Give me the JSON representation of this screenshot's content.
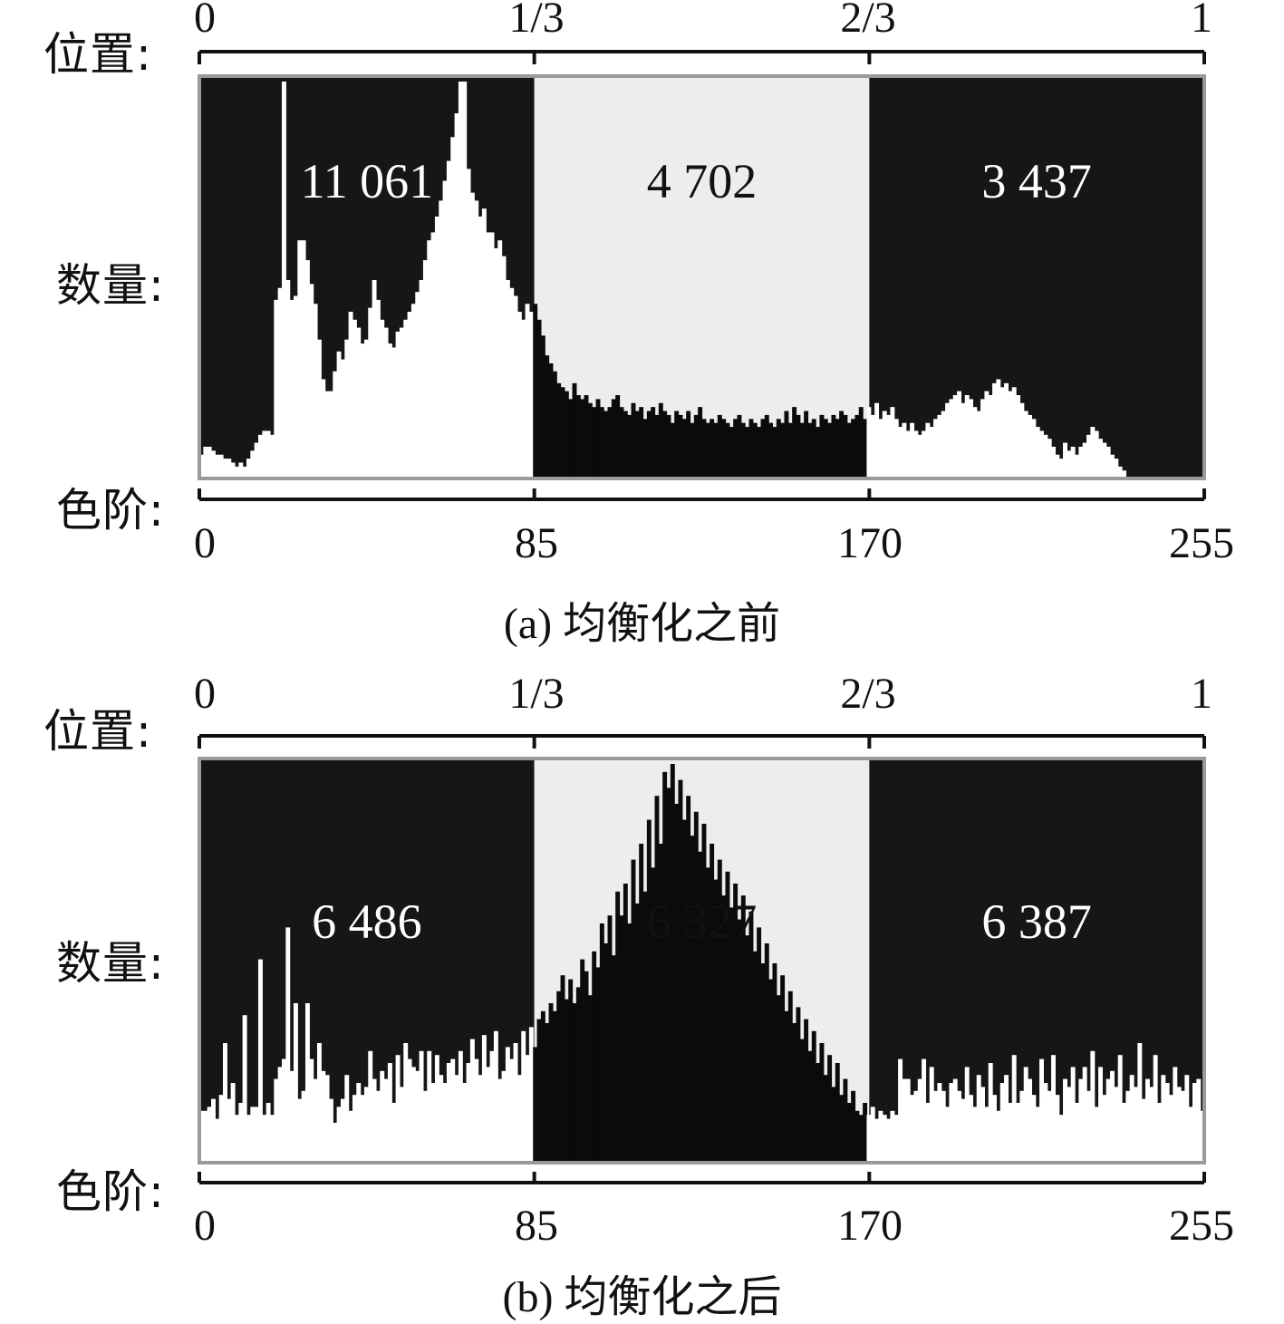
{
  "chart_data": [
    {
      "type": "bar",
      "caption": "(a) 均衡化之前",
      "row_labels": {
        "position": "位置:",
        "count": "数量:",
        "level": "色阶:"
      },
      "top_axis": {
        "ticks": [
          "0",
          "1/3",
          "2/3",
          "1"
        ],
        "values": [
          0,
          0.3333,
          0.6667,
          1
        ]
      },
      "bottom_axis": {
        "ticks": [
          "0",
          "85",
          "170",
          "255"
        ],
        "values": [
          0,
          85,
          170,
          255
        ],
        "xlim": [
          0,
          255
        ]
      },
      "regions": [
        {
          "range": [
            0,
            85
          ],
          "total_label": "11 061",
          "background": "#151716",
          "bar_color": "#ffffff",
          "label_color": "#ffffff"
        },
        {
          "range": [
            85,
            170
          ],
          "total_label": "4 702",
          "background": "#ededed",
          "bar_color": "#0b0b0b",
          "label_color": "#111111"
        },
        {
          "range": [
            170,
            255
          ],
          "total_label": "3 437",
          "background": "#151716",
          "bar_color": "#ffffff",
          "label_color": "#ffffff"
        }
      ],
      "histogram_relative": [
        0.06,
        0.08,
        0.08,
        0.07,
        0.06,
        0.06,
        0.05,
        0.05,
        0.04,
        0.03,
        0.04,
        0.03,
        0.05,
        0.07,
        0.09,
        0.11,
        0.12,
        0.12,
        0.11,
        0.45,
        0.48,
        1.0,
        0.5,
        0.45,
        0.46,
        0.6,
        0.6,
        0.55,
        0.49,
        0.44,
        0.35,
        0.25,
        0.22,
        0.22,
        0.27,
        0.32,
        0.3,
        0.35,
        0.42,
        0.4,
        0.38,
        0.34,
        0.35,
        0.43,
        0.5,
        0.45,
        0.4,
        0.38,
        0.34,
        0.33,
        0.37,
        0.38,
        0.4,
        0.42,
        0.44,
        0.47,
        0.5,
        0.55,
        0.6,
        0.62,
        0.66,
        0.7,
        0.75,
        0.8,
        0.86,
        0.92,
        1.0,
        1.0,
        0.78,
        0.72,
        0.7,
        0.66,
        0.68,
        0.62,
        0.62,
        0.58,
        0.6,
        0.56,
        0.5,
        0.48,
        0.46,
        0.42,
        0.4,
        0.44,
        0.42,
        0.44,
        0.4,
        0.36,
        0.31,
        0.29,
        0.27,
        0.24,
        0.23,
        0.22,
        0.2,
        0.24,
        0.21,
        0.2,
        0.21,
        0.19,
        0.18,
        0.2,
        0.18,
        0.17,
        0.18,
        0.2,
        0.21,
        0.18,
        0.17,
        0.16,
        0.19,
        0.17,
        0.18,
        0.15,
        0.17,
        0.18,
        0.16,
        0.19,
        0.17,
        0.16,
        0.14,
        0.17,
        0.16,
        0.15,
        0.17,
        0.14,
        0.16,
        0.18,
        0.15,
        0.14,
        0.15,
        0.14,
        0.16,
        0.15,
        0.14,
        0.13,
        0.15,
        0.16,
        0.14,
        0.13,
        0.15,
        0.14,
        0.13,
        0.15,
        0.16,
        0.14,
        0.13,
        0.15,
        0.14,
        0.17,
        0.14,
        0.18,
        0.16,
        0.14,
        0.17,
        0.14,
        0.15,
        0.13,
        0.16,
        0.15,
        0.14,
        0.16,
        0.15,
        0.17,
        0.16,
        0.14,
        0.15,
        0.16,
        0.18,
        0.15,
        0.18,
        0.16,
        0.19,
        0.15,
        0.17,
        0.16,
        0.18,
        0.15,
        0.13,
        0.14,
        0.12,
        0.14,
        0.12,
        0.11,
        0.12,
        0.14,
        0.13,
        0.15,
        0.16,
        0.17,
        0.19,
        0.2,
        0.21,
        0.22,
        0.19,
        0.21,
        0.2,
        0.18,
        0.17,
        0.2,
        0.22,
        0.21,
        0.24,
        0.25,
        0.23,
        0.24,
        0.22,
        0.23,
        0.21,
        0.19,
        0.17,
        0.16,
        0.15,
        0.13,
        0.12,
        0.11,
        0.1,
        0.08,
        0.06,
        0.05,
        0.09,
        0.07,
        0.08,
        0.06,
        0.08,
        0.09,
        0.11,
        0.13,
        0.12,
        0.1,
        0.09,
        0.08,
        0.06,
        0.05,
        0.03,
        0.02,
        0.0,
        0.0,
        0.0,
        0.0,
        0.0,
        0.0,
        0.0,
        0.0,
        0.0,
        0.0,
        0.0,
        0.0,
        0.0,
        0.0,
        0.0,
        0.0,
        0.0,
        0.0,
        0.0,
        0.0
      ]
    },
    {
      "type": "bar",
      "caption": "(b) 均衡化之后",
      "row_labels": {
        "position": "位置:",
        "count": "数量:",
        "level": "色阶:"
      },
      "top_axis": {
        "ticks": [
          "0",
          "1/3",
          "2/3",
          "1"
        ],
        "values": [
          0,
          0.3333,
          0.6667,
          1
        ]
      },
      "bottom_axis": {
        "ticks": [
          "0",
          "85",
          "170",
          "255"
        ],
        "values": [
          0,
          85,
          170,
          255
        ],
        "xlim": [
          0,
          255
        ]
      },
      "regions": [
        {
          "range": [
            0,
            85
          ],
          "total_label": "6 486",
          "background": "#151716",
          "bar_color": "#ffffff",
          "label_color": "#ffffff"
        },
        {
          "range": [
            85,
            170
          ],
          "total_label": "6 327",
          "background": "#ededed",
          "bar_color": "#0b0b0b",
          "label_color": "#111111"
        },
        {
          "range": [
            170,
            255
          ],
          "total_label": "6 387",
          "background": "#151716",
          "bar_color": "#ffffff",
          "label_color": "#ffffff"
        }
      ],
      "histogram_relative": [
        0.13,
        0.13,
        0.14,
        0.16,
        0.11,
        0.17,
        0.3,
        0.16,
        0.2,
        0.12,
        0.15,
        0.37,
        0.12,
        0.14,
        0.14,
        0.51,
        0.12,
        0.15,
        0.12,
        0.21,
        0.24,
        0.26,
        0.59,
        0.23,
        0.4,
        0.16,
        0.18,
        0.4,
        0.26,
        0.21,
        0.3,
        0.23,
        0.22,
        0.16,
        0.1,
        0.14,
        0.16,
        0.22,
        0.13,
        0.17,
        0.2,
        0.17,
        0.19,
        0.28,
        0.21,
        0.18,
        0.23,
        0.21,
        0.25,
        0.15,
        0.27,
        0.19,
        0.3,
        0.26,
        0.24,
        0.23,
        0.28,
        0.18,
        0.28,
        0.2,
        0.27,
        0.22,
        0.2,
        0.25,
        0.26,
        0.22,
        0.28,
        0.2,
        0.25,
        0.31,
        0.26,
        0.22,
        0.32,
        0.24,
        0.28,
        0.33,
        0.21,
        0.23,
        0.29,
        0.26,
        0.3,
        0.22,
        0.33,
        0.27,
        0.34,
        0.29,
        0.36,
        0.38,
        0.35,
        0.4,
        0.38,
        0.43,
        0.47,
        0.41,
        0.46,
        0.4,
        0.44,
        0.51,
        0.48,
        0.42,
        0.53,
        0.49,
        0.6,
        0.55,
        0.62,
        0.52,
        0.68,
        0.62,
        0.7,
        0.6,
        0.76,
        0.65,
        0.8,
        0.68,
        0.86,
        0.74,
        0.92,
        0.8,
        0.98,
        0.94,
        1.0,
        0.9,
        0.96,
        0.86,
        0.92,
        0.82,
        0.88,
        0.78,
        0.85,
        0.74,
        0.8,
        0.71,
        0.76,
        0.67,
        0.73,
        0.64,
        0.7,
        0.61,
        0.67,
        0.57,
        0.63,
        0.53,
        0.59,
        0.5,
        0.55,
        0.46,
        0.5,
        0.42,
        0.47,
        0.38,
        0.43,
        0.35,
        0.39,
        0.31,
        0.36,
        0.28,
        0.33,
        0.25,
        0.3,
        0.22,
        0.27,
        0.19,
        0.25,
        0.17,
        0.21,
        0.15,
        0.18,
        0.13,
        0.12,
        0.15,
        0.12,
        0.14,
        0.11,
        0.13,
        0.12,
        0.11,
        0.13,
        0.12,
        0.26,
        0.21,
        0.21,
        0.17,
        0.18,
        0.21,
        0.26,
        0.15,
        0.24,
        0.18,
        0.2,
        0.18,
        0.14,
        0.2,
        0.21,
        0.18,
        0.16,
        0.24,
        0.17,
        0.14,
        0.22,
        0.19,
        0.14,
        0.25,
        0.17,
        0.13,
        0.2,
        0.22,
        0.15,
        0.27,
        0.15,
        0.18,
        0.24,
        0.21,
        0.17,
        0.14,
        0.26,
        0.2,
        0.18,
        0.27,
        0.17,
        0.12,
        0.21,
        0.19,
        0.24,
        0.15,
        0.21,
        0.24,
        0.18,
        0.28,
        0.14,
        0.24,
        0.17,
        0.21,
        0.23,
        0.19,
        0.27,
        0.15,
        0.18,
        0.22,
        0.19,
        0.3,
        0.16,
        0.21,
        0.19,
        0.27,
        0.15,
        0.22,
        0.2,
        0.17,
        0.24,
        0.19,
        0.18,
        0.22,
        0.14,
        0.2,
        0.21,
        0.13
      ]
    }
  ]
}
